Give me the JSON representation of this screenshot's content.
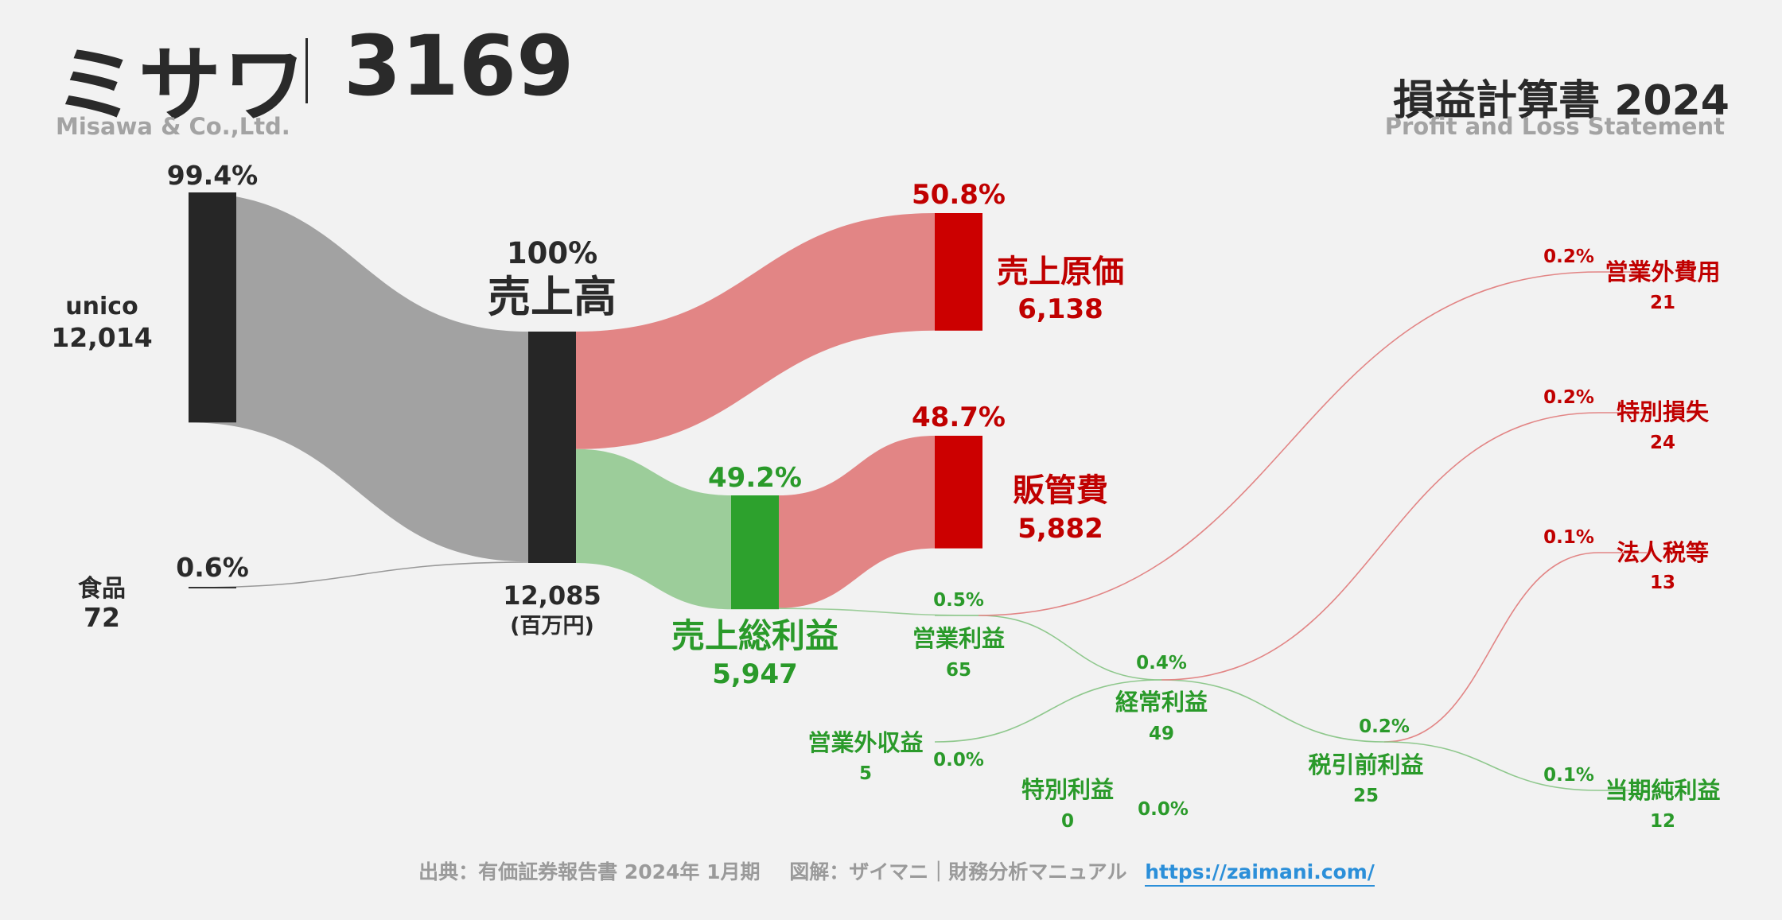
{
  "header": {
    "company_name": "ミサワ",
    "company_code": "3169",
    "company_name_en": "Misawa & Co.,Ltd.",
    "report_title": "損益計算書 2024",
    "report_title_en": "Profit and Loss Statement"
  },
  "footer": {
    "source": "出典：有価証券報告書 2024年 1月期",
    "credit": "図解：ザイマニ｜財務分析マニュアル",
    "url": "https://zaimani.com/"
  },
  "colors": {
    "neutral_node": "#262626",
    "neutral_flow": "#a2a2a2",
    "cost_node": "#cc0000",
    "cost_flow": "#e28585",
    "profit_node": "#2da12d",
    "profit_flow": "#9ccd9a",
    "cost_text": "#c00000",
    "profit_text": "#2a9a2a",
    "neutral_text": "#2a2a2a"
  },
  "chart_data": {
    "type": "sankey",
    "unit": "(百万円)",
    "nodes": [
      {
        "id": "unico",
        "label": "unico",
        "value": "12,014",
        "pct": "99.4%"
      },
      {
        "id": "food",
        "label": "食品",
        "value": "72",
        "pct": "0.6%"
      },
      {
        "id": "revenue",
        "label": "売上高",
        "value": "12,085",
        "pct": "100%"
      },
      {
        "id": "cogs",
        "label": "売上原価",
        "value": "6,138",
        "pct": "50.8%"
      },
      {
        "id": "gross",
        "label": "売上総利益",
        "value": "5,947",
        "pct": "49.2%"
      },
      {
        "id": "sga",
        "label": "販管費",
        "value": "5,882",
        "pct": "48.7%"
      },
      {
        "id": "op",
        "label": "営業利益",
        "value": "65",
        "pct": "0.5%"
      },
      {
        "id": "nonop_inc",
        "label": "営業外収益",
        "value": "5",
        "pct": "0.0%"
      },
      {
        "id": "nonop_exp",
        "label": "営業外費用",
        "value": "21",
        "pct": "0.2%"
      },
      {
        "id": "ordinary",
        "label": "経常利益",
        "value": "49",
        "pct": "0.4%"
      },
      {
        "id": "ext_gain",
        "label": "特別利益",
        "value": "0",
        "pct": "0.0%"
      },
      {
        "id": "ext_loss",
        "label": "特別損失",
        "value": "24",
        "pct": "0.2%"
      },
      {
        "id": "pretax",
        "label": "税引前利益",
        "value": "25",
        "pct": "0.2%"
      },
      {
        "id": "tax",
        "label": "法人税等",
        "value": "13",
        "pct": "0.1%"
      },
      {
        "id": "net",
        "label": "当期純利益",
        "value": "12",
        "pct": "0.1%"
      }
    ],
    "links": [
      {
        "source": "unico",
        "target": "revenue",
        "value": 12014
      },
      {
        "source": "food",
        "target": "revenue",
        "value": 72
      },
      {
        "source": "revenue",
        "target": "cogs",
        "value": 6138
      },
      {
        "source": "revenue",
        "target": "gross",
        "value": 5947
      },
      {
        "source": "gross",
        "target": "sga",
        "value": 5882
      },
      {
        "source": "gross",
        "target": "op",
        "value": 65
      },
      {
        "source": "op",
        "target": "ordinary",
        "value": 44
      },
      {
        "source": "op",
        "target": "nonop_exp",
        "value": 21
      },
      {
        "source": "nonop_inc",
        "target": "ordinary",
        "value": 5
      },
      {
        "source": "ordinary",
        "target": "pretax",
        "value": 25
      },
      {
        "source": "ordinary",
        "target": "ext_loss",
        "value": 24
      },
      {
        "source": "ext_gain",
        "target": "pretax",
        "value": 0
      },
      {
        "source": "pretax",
        "target": "net",
        "value": 12
      },
      {
        "source": "pretax",
        "target": "tax",
        "value": 13
      }
    ]
  }
}
